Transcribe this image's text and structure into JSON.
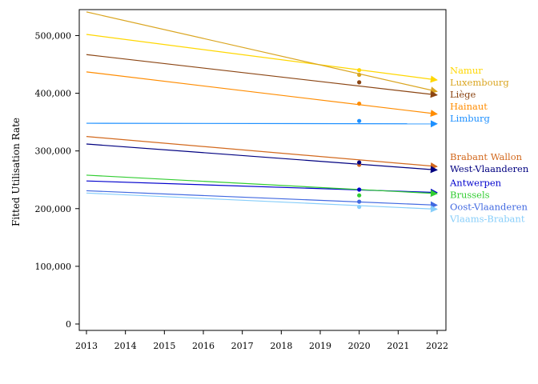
{
  "chart_data": {
    "type": "line",
    "title": "",
    "xlabel": "",
    "ylabel": "Fitted Utilisation Rate",
    "xlim": [
      2013,
      2022
    ],
    "ylim": [
      0,
      545000
    ],
    "x_ticks": [
      2013,
      2014,
      2015,
      2016,
      2017,
      2018,
      2019,
      2020,
      2021,
      2022
    ],
    "y_ticks": [
      0,
      100000,
      200000,
      300000,
      400000,
      500000
    ],
    "y_tick_labels": [
      "0",
      "100,000",
      "200,000",
      "300,000",
      "400,000",
      "500,000"
    ],
    "grid": false,
    "legend": "direct labels at right end of lines",
    "series": [
      {
        "name": "Namur",
        "color": "#FFD700",
        "start": [
          2013,
          502000
        ],
        "end": [
          2022,
          423000
        ],
        "observed": [
          2020,
          440000
        ]
      },
      {
        "name": "Luxembourg",
        "color": "#DAA520",
        "start": [
          2013,
          541000
        ],
        "end": [
          2022,
          403000
        ],
        "observed": [
          2020,
          432000
        ]
      },
      {
        "name": "Liège",
        "color": "#8B4513",
        "start": [
          2013,
          467000
        ],
        "end": [
          2022,
          397000
        ],
        "observed": [
          2020,
          419000
        ]
      },
      {
        "name": "Hainaut",
        "color": "#FF8C00",
        "start": [
          2013,
          437000
        ],
        "end": [
          2022,
          364000
        ],
        "observed": [
          2020,
          382000
        ]
      },
      {
        "name": "Limburg",
        "color": "#1E90FF",
        "start": [
          2013,
          348000
        ],
        "end": [
          2022,
          347000
        ],
        "observed": [
          2020,
          352000
        ]
      },
      {
        "name": "Brabant Wallon",
        "color": "#D2691E",
        "start": [
          2013,
          325000
        ],
        "end": [
          2022,
          273000
        ],
        "observed": [
          2020,
          276000
        ]
      },
      {
        "name": "West-Vlaanderen",
        "color": "#000080",
        "start": [
          2013,
          312000
        ],
        "end": [
          2022,
          267000
        ],
        "observed": [
          2020,
          280000
        ]
      },
      {
        "name": "Antwerpen",
        "color": "#0000CD",
        "start": [
          2013,
          248000
        ],
        "end": [
          2022,
          228000
        ],
        "observed": [
          2020,
          233000
        ]
      },
      {
        "name": "Brussels",
        "color": "#32CD32",
        "start": [
          2013,
          258000
        ],
        "end": [
          2022,
          226000
        ],
        "observed": [
          2020,
          223000
        ]
      },
      {
        "name": "Oost-Vlaanderen",
        "color": "#4169E1",
        "start": [
          2013,
          231000
        ],
        "end": [
          2022,
          206000
        ],
        "observed": [
          2020,
          212000
        ]
      },
      {
        "name": "Vlaams-Brabant",
        "color": "#87CEFA",
        "start": [
          2013,
          227000
        ],
        "end": [
          2022,
          199000
        ],
        "observed": [
          2020,
          203000
        ]
      }
    ]
  }
}
